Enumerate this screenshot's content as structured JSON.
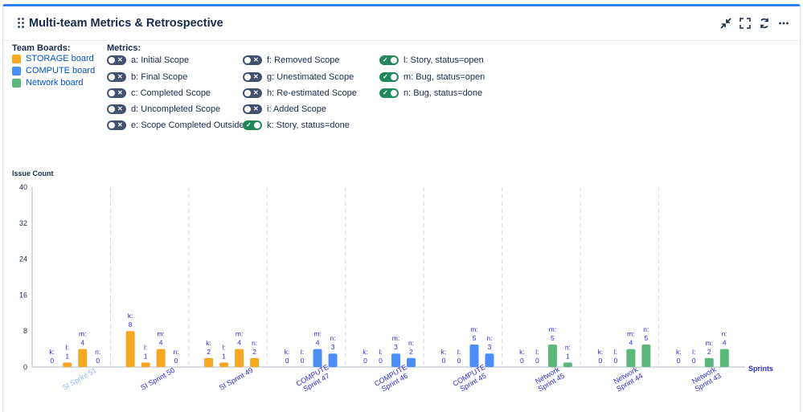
{
  "header": {
    "title": "Multi-team Metrics & Retrospective",
    "icons": [
      "minimize-icon",
      "fullscreen-icon",
      "refresh-icon",
      "more-icon"
    ]
  },
  "legend": {
    "team_boards_title": "Team Boards:",
    "teams": [
      {
        "label": "STORAGE board",
        "color": "#f6a822"
      },
      {
        "label": "COMPUTE board",
        "color": "#4c8ef7"
      },
      {
        "label": "Network board",
        "color": "#5cb87a"
      }
    ],
    "metrics_title": "Metrics:",
    "metrics": [
      {
        "label": "a: Initial Scope",
        "on": false
      },
      {
        "label": "b: Final Scope",
        "on": false
      },
      {
        "label": "c: Completed Scope",
        "on": false
      },
      {
        "label": "d: Uncompleted Scope",
        "on": false
      },
      {
        "label": "e: Scope Completed Outside",
        "on": false
      },
      {
        "label": "f: Removed Scope",
        "on": false
      },
      {
        "label": "g: Unestimated Scope",
        "on": false
      },
      {
        "label": "h: Re-estimated Scope",
        "on": false
      },
      {
        "label": "i: Added Scope",
        "on": false
      },
      {
        "label": "k: Story, status=done",
        "on": true
      },
      {
        "label": "l: Story, status=open",
        "on": true
      },
      {
        "label": "m: Bug, status=open",
        "on": true
      },
      {
        "label": "n: Bug, status=done",
        "on": true
      }
    ]
  },
  "chart_data": {
    "type": "bar",
    "ylabel": "Issue Count",
    "xlabel": "Sprints",
    "ylim": [
      0,
      40
    ],
    "yticks": [
      0,
      8,
      16,
      24,
      32,
      40
    ],
    "series_keys": [
      "k",
      "l",
      "m",
      "n"
    ],
    "categories": [
      {
        "label": "SI Sprint 51",
        "team": "STORAGE",
        "color": "#f6a822",
        "values": [
          0,
          1,
          4,
          0
        ],
        "highlight": true
      },
      {
        "label": "SI Sprint 50",
        "team": "STORAGE",
        "color": "#f6a822",
        "values": [
          8,
          1,
          4,
          0
        ]
      },
      {
        "label": "SI Sprint 49",
        "team": "STORAGE",
        "color": "#f6a822",
        "values": [
          2,
          1,
          4,
          2
        ]
      },
      {
        "label": "COMPUTE Sprint 47",
        "team": "COMPUTE",
        "color": "#4c8ef7",
        "values": [
          0,
          0,
          4,
          3
        ]
      },
      {
        "label": "COMPUTE Sprint 46",
        "team": "COMPUTE",
        "color": "#4c8ef7",
        "values": [
          0,
          0,
          3,
          2
        ]
      },
      {
        "label": "COMPUTE Sprint 45",
        "team": "COMPUTE",
        "color": "#4c8ef7",
        "values": [
          0,
          0,
          5,
          3
        ]
      },
      {
        "label": "Network Sprint 45",
        "team": "Network",
        "color": "#5cb87a",
        "values": [
          0,
          0,
          5,
          1
        ]
      },
      {
        "label": "Network Sprint 44",
        "team": "Network",
        "color": "#5cb87a",
        "values": [
          0,
          0,
          4,
          5
        ]
      },
      {
        "label": "Network Sprint 43",
        "team": "Network",
        "color": "#5cb87a",
        "values": [
          0,
          0,
          2,
          4
        ]
      }
    ],
    "label_color": "#2a2fd6",
    "highlight_color": "#8fb4f5"
  }
}
